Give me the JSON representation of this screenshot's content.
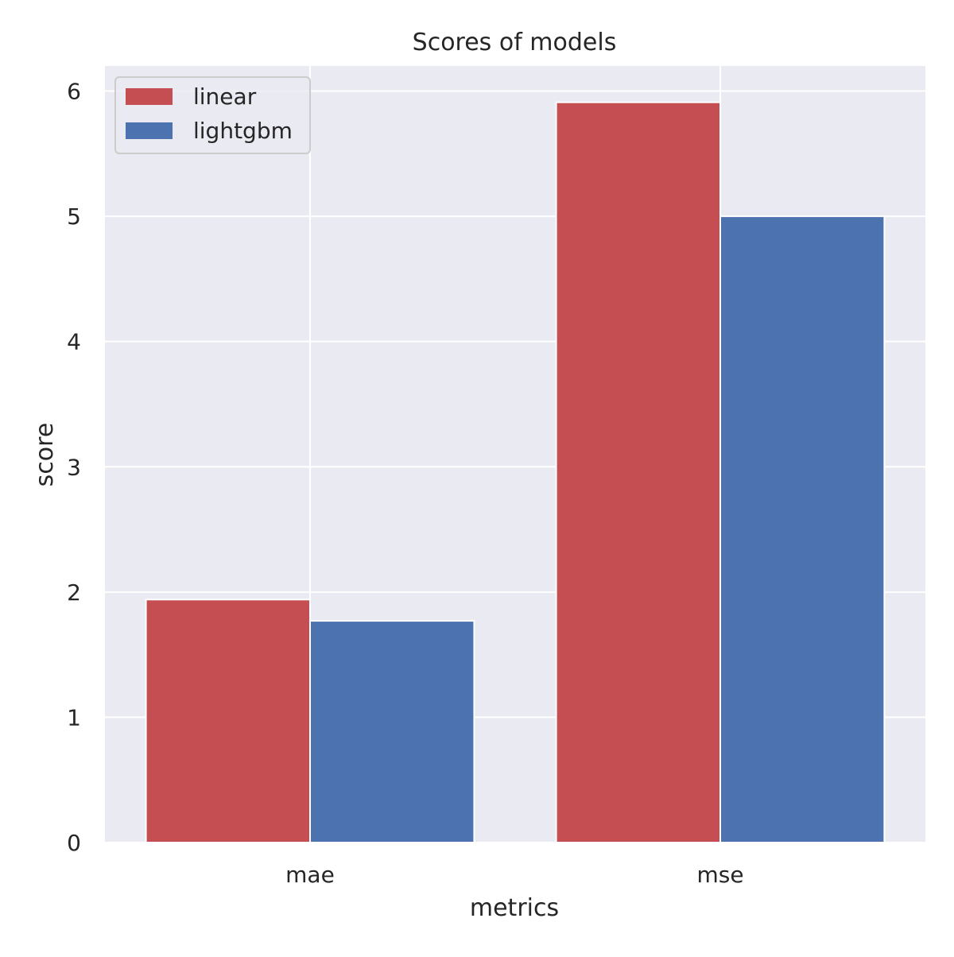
{
  "chart_data": {
    "type": "bar",
    "title": "Scores of models",
    "xlabel": "metrics",
    "ylabel": "score",
    "categories": [
      "mae",
      "mse"
    ],
    "series": [
      {
        "name": "linear",
        "values": [
          1.94,
          5.91
        ],
        "color": "#c44e52"
      },
      {
        "name": "lightgbm",
        "values": [
          1.77,
          5.0
        ],
        "color": "#4c72b0"
      }
    ],
    "ylim": [
      0,
      6.2
    ],
    "yticks": [
      0,
      1,
      2,
      3,
      4,
      5,
      6
    ],
    "grid": true,
    "legend_position": "top-left",
    "colors": {
      "plot_background": "#eaeaf2",
      "grid": "#ffffff",
      "text": "#262626"
    }
  }
}
